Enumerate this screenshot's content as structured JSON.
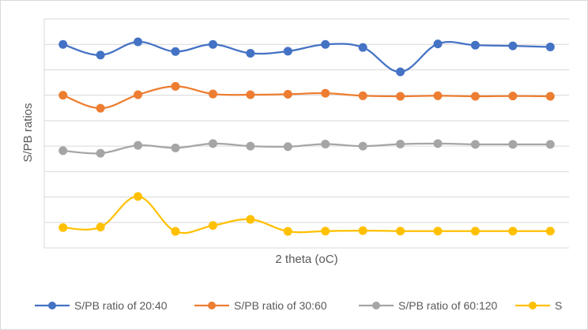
{
  "chart_data": {
    "type": "line",
    "title": "",
    "xlabel": "2 theta (oC)",
    "ylabel": "S/PB ratios",
    "ylim": [
      0,
      9
    ],
    "grid": true,
    "legend_position": "bottom",
    "x": [
      1,
      2,
      3,
      4,
      5,
      6,
      7,
      8,
      9,
      10,
      11,
      12,
      13,
      14
    ],
    "series": [
      {
        "name": "S/PB ratio of 20:40",
        "color": "#4472C4",
        "values": [
          8.0,
          7.58,
          8.1,
          7.72,
          8.0,
          7.65,
          7.73,
          8.0,
          7.88,
          6.92,
          8.02,
          7.97,
          7.94,
          7.9
        ]
      },
      {
        "name": "S/PB ratio of 30:60",
        "color": "#ED7D31",
        "values": [
          6.0,
          5.49,
          6.02,
          6.35,
          6.05,
          6.02,
          6.04,
          6.08,
          5.98,
          5.96,
          5.98,
          5.96,
          5.97,
          5.96
        ]
      },
      {
        "name": "S/PB ratio of 60:120",
        "color": "#A5A5A5",
        "values": [
          3.82,
          3.72,
          4.03,
          3.93,
          4.1,
          4.0,
          3.98,
          4.08,
          4.0,
          4.08,
          4.1,
          4.07,
          4.07,
          4.07
        ]
      },
      {
        "name": "S",
        "color": "#FFC000",
        "values": [
          0.8,
          0.82,
          2.02,
          0.65,
          0.88,
          1.12,
          0.65,
          0.66,
          0.68,
          0.66,
          0.66,
          0.66,
          0.66,
          0.66
        ]
      }
    ]
  }
}
